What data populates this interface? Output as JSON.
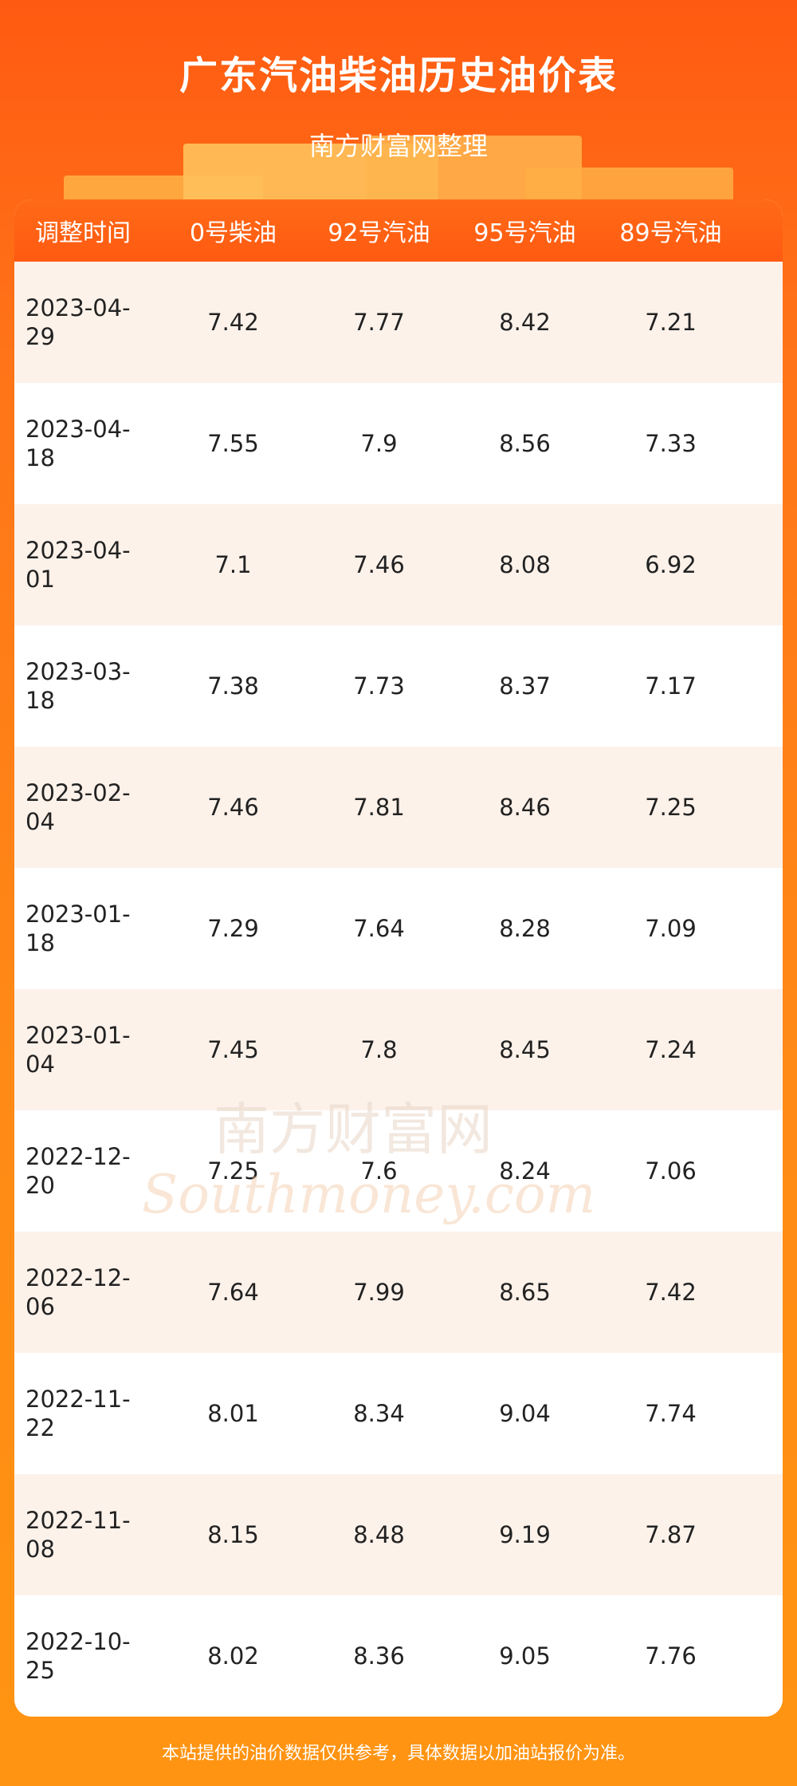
{
  "header": {
    "title": "广东汽油柴油历史油价表",
    "subtitle": "南方财富网整理"
  },
  "table": {
    "columns": [
      "调整时间",
      "0号柴油",
      "92号汽油",
      "95号汽油",
      "89号汽油"
    ],
    "rows": [
      {
        "date_line1": "2023-04-",
        "date_line2": "29",
        "diesel0": "7.42",
        "gas92": "7.77",
        "gas95": "8.42",
        "gas89": "7.21"
      },
      {
        "date_line1": "2023-04-",
        "date_line2": "18",
        "diesel0": "7.55",
        "gas92": "7.9",
        "gas95": "8.56",
        "gas89": "7.33"
      },
      {
        "date_line1": "2023-04-",
        "date_line2": "01",
        "diesel0": "7.1",
        "gas92": "7.46",
        "gas95": "8.08",
        "gas89": "6.92"
      },
      {
        "date_line1": "2023-03-",
        "date_line2": "18",
        "diesel0": "7.38",
        "gas92": "7.73",
        "gas95": "8.37",
        "gas89": "7.17"
      },
      {
        "date_line1": "2023-02-",
        "date_line2": "04",
        "diesel0": "7.46",
        "gas92": "7.81",
        "gas95": "8.46",
        "gas89": "7.25"
      },
      {
        "date_line1": "2023-01-",
        "date_line2": "18",
        "diesel0": "7.29",
        "gas92": "7.64",
        "gas95": "8.28",
        "gas89": "7.09"
      },
      {
        "date_line1": "2023-01-",
        "date_line2": "04",
        "diesel0": "7.45",
        "gas92": "7.8",
        "gas95": "8.45",
        "gas89": "7.24"
      },
      {
        "date_line1": "2022-12-",
        "date_line2": "20",
        "diesel0": "7.25",
        "gas92": "7.6",
        "gas95": "8.24",
        "gas89": "7.06"
      },
      {
        "date_line1": "2022-12-",
        "date_line2": "06",
        "diesel0": "7.64",
        "gas92": "7.99",
        "gas95": "8.65",
        "gas89": "7.42"
      },
      {
        "date_line1": "2022-11-",
        "date_line2": "22",
        "diesel0": "8.01",
        "gas92": "8.34",
        "gas95": "9.04",
        "gas89": "7.74"
      },
      {
        "date_line1": "2022-11-",
        "date_line2": "08",
        "diesel0": "8.15",
        "gas92": "8.48",
        "gas95": "9.19",
        "gas89": "7.87"
      },
      {
        "date_line1": "2022-10-",
        "date_line2": "25",
        "diesel0": "8.02",
        "gas92": "8.36",
        "gas95": "9.05",
        "gas89": "7.76"
      }
    ]
  },
  "watermark": {
    "text_cn": "南方财富网",
    "text_en": "Southmoney.com"
  },
  "footer": {
    "note": "本站提供的油价数据仅供参考，具体数据以加油站报价为准。"
  },
  "colors": {
    "header_orange": "#ff5a12",
    "row_tint": "#fdf2ea"
  }
}
